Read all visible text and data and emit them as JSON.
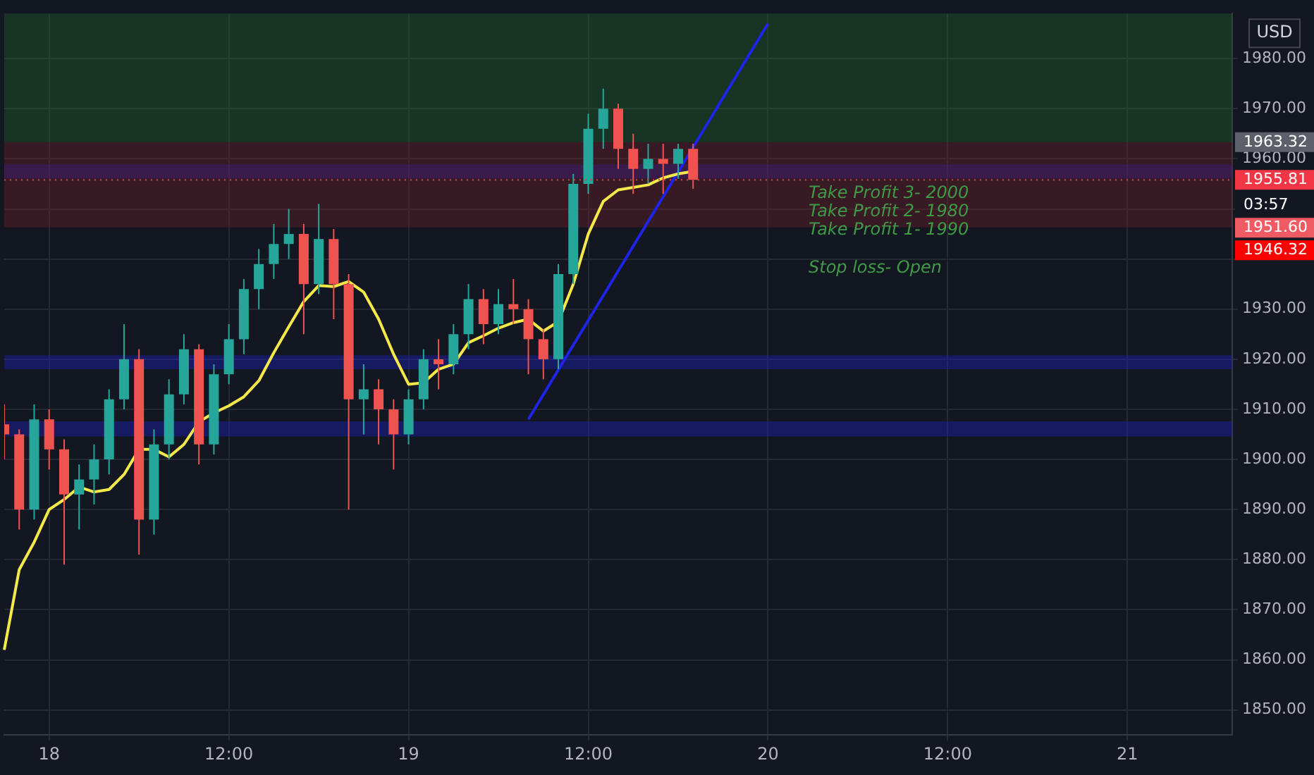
{
  "chart_data": {
    "type": "candlestick",
    "categories": [
      null,
      null,
      null,
      "18",
      null,
      null,
      null,
      null,
      null,
      null,
      null,
      null,
      null,
      null,
      null,
      "12:00",
      null,
      null,
      null,
      null,
      null,
      null,
      null,
      null,
      null,
      null,
      null,
      "19",
      null,
      null,
      null,
      null,
      null,
      null,
      null,
      null,
      null,
      null,
      null,
      "12:00",
      null,
      null,
      null,
      null,
      null,
      null,
      null,
      null,
      null,
      null,
      null,
      "20",
      null,
      null,
      null,
      null,
      null,
      null,
      null,
      null,
      null,
      null,
      null,
      "12:00",
      null,
      null,
      null,
      null,
      null,
      null,
      null,
      null,
      null,
      null,
      null,
      "21",
      null,
      null,
      null,
      null,
      null,
      null,
      null
    ],
    "ohlc": [
      [
        1907,
        1911,
        1900,
        1905
      ],
      [
        1905,
        1906,
        1886,
        1890
      ],
      [
        1890,
        1911,
        1888,
        1908
      ],
      [
        1908,
        1910,
        1898,
        1902
      ],
      [
        1902,
        1904,
        1879,
        1893
      ],
      [
        1893,
        1899,
        1886,
        1896
      ],
      [
        1896,
        1903,
        1891,
        1900
      ],
      [
        1900,
        1914,
        1897,
        1912
      ],
      [
        1912,
        1927,
        1910,
        1920
      ],
      [
        1920,
        1922,
        1881,
        1888
      ],
      [
        1888,
        1906,
        1885,
        1903
      ],
      [
        1903,
        1916,
        1900,
        1913
      ],
      [
        1913,
        1925,
        1911,
        1922
      ],
      [
        1922,
        1923,
        1899,
        1903
      ],
      [
        1903,
        1919,
        1901,
        1917
      ],
      [
        1917,
        1927,
        1915,
        1924
      ],
      [
        1924,
        1936,
        1921,
        1934
      ],
      [
        1934,
        1942,
        1930,
        1939
      ],
      [
        1939,
        1947,
        1936,
        1943
      ],
      [
        1943,
        1950,
        1940,
        1945
      ],
      [
        1945,
        1947,
        1925,
        1935
      ],
      [
        1935,
        1951,
        1933,
        1944
      ],
      [
        1944,
        1946,
        1928,
        1935
      ],
      [
        1935,
        1937,
        1890,
        1912
      ],
      [
        1912,
        1919,
        1905,
        1914
      ],
      [
        1914,
        1916,
        1903,
        1910
      ],
      [
        1910,
        1912,
        1898,
        1905
      ],
      [
        1905,
        1914,
        1903,
        1912
      ],
      [
        1912,
        1922,
        1910,
        1920
      ],
      [
        1920,
        1924,
        1914,
        1919
      ],
      [
        1919,
        1927,
        1917,
        1925
      ],
      [
        1925,
        1935,
        1922,
        1932
      ],
      [
        1932,
        1934,
        1923,
        1927
      ],
      [
        1927,
        1934,
        1925,
        1931
      ],
      [
        1931,
        1936,
        1927,
        1930
      ],
      [
        1930,
        1932,
        1917,
        1924
      ],
      [
        1924,
        1926,
        1916,
        1920
      ],
      [
        1920,
        1939,
        1918,
        1937
      ],
      [
        1937,
        1957,
        1935,
        1955
      ],
      [
        1955,
        1969,
        1953,
        1966
      ],
      [
        1966,
        1974,
        1962,
        1970
      ],
      [
        1970,
        1971,
        1958,
        1962
      ],
      [
        1962,
        1965,
        1953,
        1958
      ],
      [
        1958,
        1963,
        1955,
        1960
      ],
      [
        1960,
        1963,
        1953,
        1959
      ],
      [
        1959,
        1963,
        1956,
        1962
      ],
      [
        1962,
        1963,
        1954,
        1955.81
      ],
      null,
      null,
      null,
      null,
      null,
      null,
      null,
      null,
      null,
      null,
      null,
      null,
      null,
      null,
      null,
      null,
      null,
      null,
      null,
      null,
      null,
      null,
      null,
      null,
      null,
      null,
      null,
      null,
      null,
      null,
      null,
      null,
      null,
      null,
      null,
      null
    ],
    "series": [
      {
        "type": "line",
        "color": "#f5e94a",
        "values": [
          1862,
          1878,
          1883.5,
          1890,
          1892,
          1894.5,
          1893.5,
          1894,
          1897,
          1902,
          1902,
          1900.5,
          1903,
          1907.5,
          1909.3,
          1910.7,
          1912.5,
          1915.7,
          1921.3,
          1926.5,
          1931.5,
          1934.7,
          1934.5,
          1935.5,
          1933.4,
          1928,
          1921,
          1915,
          1915.3,
          1918,
          1919,
          1923.3,
          1924.7,
          1926.2,
          1927.3,
          1928,
          1925.6,
          1927.5,
          1935,
          1945,
          1951.5,
          1953.8,
          1954.3,
          1954.8,
          1956.2,
          1957,
          1957.5,
          null,
          null,
          null,
          null,
          null,
          null,
          null,
          null,
          null,
          null,
          null,
          null,
          null,
          null,
          null,
          null,
          null,
          null,
          null,
          null,
          null,
          null,
          null,
          null,
          null,
          null,
          null,
          null,
          null,
          null,
          null,
          null,
          null,
          null,
          null,
          null
        ]
      },
      {
        "type": "line",
        "color": "#1e24e6",
        "values": [
          null,
          null,
          null,
          null,
          null,
          null,
          null,
          null,
          null,
          null,
          null,
          null,
          null,
          null,
          null,
          null,
          null,
          null,
          null,
          null,
          null,
          null,
          null,
          null,
          null,
          null,
          null,
          null,
          null,
          null,
          null,
          null,
          null,
          null,
          null,
          1908,
          null,
          null,
          null,
          null,
          null,
          null,
          null,
          null,
          null,
          null,
          null,
          null,
          null,
          null,
          null,
          1987,
          null,
          null,
          null,
          null,
          null,
          null,
          null,
          null,
          null,
          null,
          null,
          null,
          null,
          null,
          null,
          null,
          null,
          null,
          null,
          null,
          null,
          null,
          null,
          null,
          null,
          null,
          null,
          null,
          null,
          null,
          null
        ]
      }
    ],
    "ylim": [
      1845,
      1989
    ],
    "yticks": [
      {
        "value": 1850,
        "label": "1850.00"
      },
      {
        "value": 1860,
        "label": "1860.00"
      },
      {
        "value": 1870,
        "label": "1870.00"
      },
      {
        "value": 1880,
        "label": "1880.00"
      },
      {
        "value": 1890,
        "label": "1890.00"
      },
      {
        "value": 1900,
        "label": "1900.00"
      },
      {
        "value": 1910,
        "label": "1910.00"
      },
      {
        "value": 1920,
        "label": "1920.00"
      },
      {
        "value": 1930,
        "label": "1930.00"
      },
      {
        "value": 1940,
        "label": null
      },
      {
        "value": 1950,
        "label": null
      },
      {
        "value": 1960,
        "label": "1960.00"
      },
      {
        "value": 1970,
        "label": "1970.00"
      },
      {
        "value": 1980,
        "label": "1980.00"
      }
    ],
    "bands": [
      {
        "axis": "y",
        "from": 1956.1,
        "to": 1958.9,
        "color": "#1c1fd6"
      },
      {
        "axis": "y",
        "from": 1918,
        "to": 1920.8,
        "color": "#1c1fd6"
      },
      {
        "axis": "y",
        "from": 1904.6,
        "to": 1907.6,
        "color": "#1c1fd6"
      },
      {
        "axis": "y",
        "from": 1963.32,
        "to": 1989,
        "color": "#1f6b2a",
        "label": "1963.32"
      },
      {
        "axis": "y",
        "from": 1946.32,
        "to": 1963.32,
        "color": "#7a1f26"
      }
    ],
    "ref_lines": [
      {
        "axis": "y",
        "value": 1955.81,
        "label": "1955.81",
        "color": "#f23645",
        "line_style": "dotted"
      }
    ],
    "annotations": [
      "USD",
      "03:57",
      "1951.60",
      "1946.32",
      "Take Profit 3- 2000",
      "Take Profit 2- 1980",
      "Take Profit 1- 1990",
      "Stop loss- Open"
    ],
    "grid": true,
    "legend": false
  }
}
